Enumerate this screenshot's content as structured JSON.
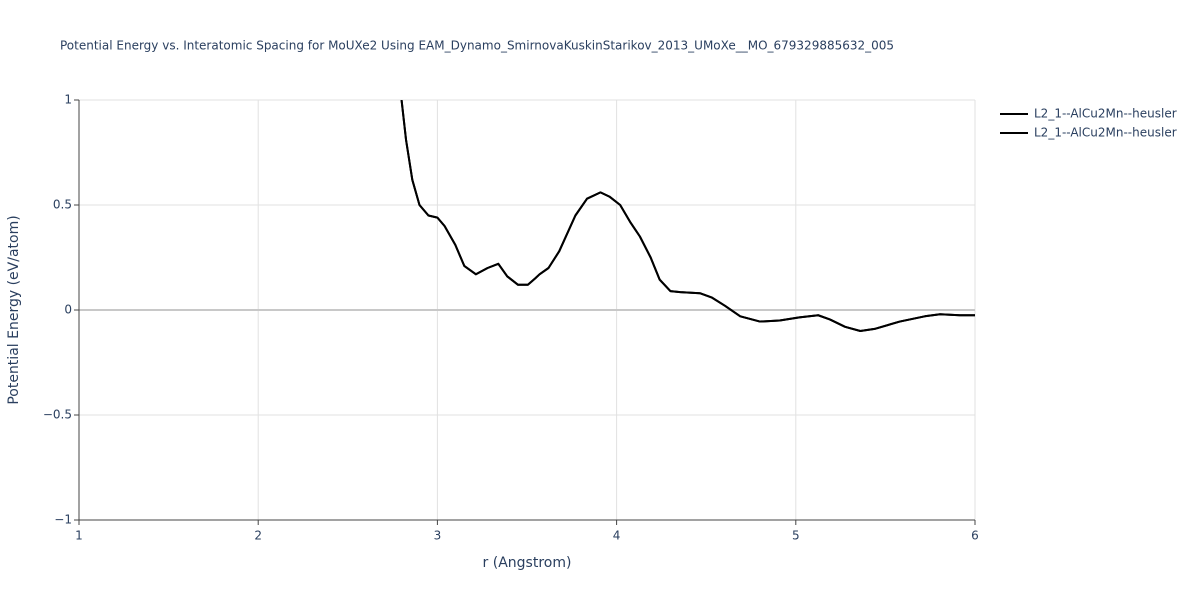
{
  "chart_data": {
    "type": "line",
    "title": "Potential Energy vs. Interatomic Spacing for MoUXe2 Using EAM_Dynamo_SmirnovaKuskinStarikov_2013_UMoXe__MO_679329885632_005",
    "x_label": "r (Angstrom)",
    "y_label": "Potential Energy (eV/atom)",
    "x": [
      2.8,
      2.825,
      2.86,
      2.9,
      2.95,
      3.0,
      3.04,
      3.1,
      3.15,
      3.215,
      3.28,
      3.34,
      3.39,
      3.45,
      3.505,
      3.545,
      3.57,
      3.62,
      3.68,
      3.77,
      3.835,
      3.91,
      3.96,
      4.02,
      4.075,
      4.13,
      4.19,
      4.24,
      4.3,
      4.355,
      4.465,
      4.53,
      4.605,
      4.69,
      4.8,
      4.91,
      5.02,
      5.125,
      5.19,
      5.275,
      5.36,
      5.44,
      5.58,
      5.72,
      5.805,
      5.915,
      6.0
    ],
    "series": [
      {
        "name": "L2_1--AlCu2Mn--heusler",
        "color": "#000000",
        "values": [
          1.0,
          0.81,
          0.62,
          0.5,
          0.45,
          0.44,
          0.4,
          0.31,
          0.21,
          0.17,
          0.2,
          0.22,
          0.16,
          0.12,
          0.12,
          0.15,
          0.17,
          0.2,
          0.28,
          0.45,
          0.53,
          0.56,
          0.54,
          0.5,
          0.42,
          0.35,
          0.25,
          0.145,
          0.09,
          0.085,
          0.08,
          0.06,
          0.02,
          -0.03,
          -0.055,
          -0.05,
          -0.035,
          -0.025,
          -0.045,
          -0.08,
          -0.1,
          -0.09,
          -0.055,
          -0.03,
          -0.02,
          -0.025,
          -0.025
        ]
      },
      {
        "name": "L2_1--AlCu2Mn--heusler",
        "color": "#000000",
        "values": [
          1.0,
          0.81,
          0.62,
          0.5,
          0.45,
          0.44,
          0.4,
          0.31,
          0.21,
          0.17,
          0.2,
          0.22,
          0.16,
          0.12,
          0.12,
          0.15,
          0.17,
          0.2,
          0.28,
          0.45,
          0.53,
          0.56,
          0.54,
          0.5,
          0.42,
          0.35,
          0.25,
          0.145,
          0.09,
          0.085,
          0.08,
          0.06,
          0.02,
          -0.03,
          -0.055,
          -0.05,
          -0.035,
          -0.025,
          -0.045,
          -0.08,
          -0.1,
          -0.09,
          -0.055,
          -0.03,
          -0.02,
          -0.025,
          -0.025
        ]
      }
    ],
    "xlim": [
      1,
      6
    ],
    "xticks": [
      1,
      2,
      3,
      4,
      5,
      6
    ],
    "ylim": [
      -1,
      1
    ],
    "yticks": [
      {
        "value": -1,
        "label": "−1"
      },
      {
        "value": -0.5,
        "label": "−0.5"
      },
      0,
      0.5,
      1
    ],
    "grid": true,
    "legend": "top-right"
  }
}
